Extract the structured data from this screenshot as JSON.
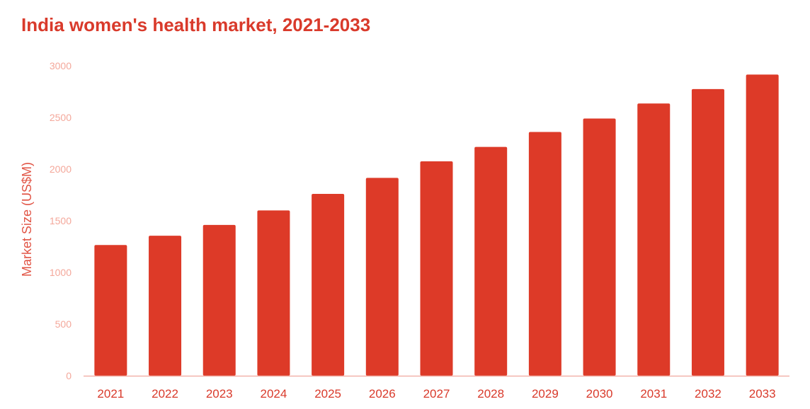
{
  "chart_data": {
    "type": "bar",
    "title": "India women's health market, 2021-2033",
    "xlabel": "",
    "ylabel": "Market Size (US$M)",
    "ylim": [
      0,
      3000
    ],
    "yticks": [
      "0",
      "500",
      "1000",
      "1500",
      "2000",
      "2500",
      "3000"
    ],
    "categories": [
      "2021",
      "2022",
      "2023",
      "2024",
      "2025",
      "2026",
      "2027",
      "2028",
      "2029",
      "2030",
      "2031",
      "2032",
      "2033"
    ],
    "values": [
      1265,
      1355,
      1460,
      1600,
      1760,
      1915,
      2075,
      2215,
      2360,
      2490,
      2635,
      2775,
      2915
    ],
    "grid": false,
    "legend": "none",
    "colors": {
      "bar": "#dd3a28",
      "title": "#d93a2b",
      "axis_line": "#f2b3aa",
      "ytick": "#f4a89b",
      "xtick": "#d93a2b",
      "ylabel": "#e15546"
    }
  }
}
